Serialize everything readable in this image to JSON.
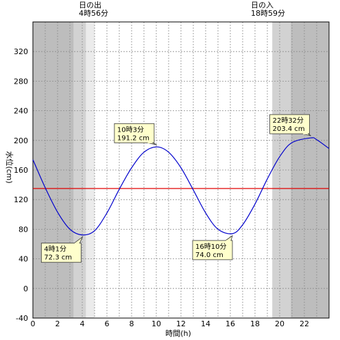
{
  "sun": {
    "sunrise_label": "日の出",
    "sunrise_time": "4時56分",
    "sunset_label": "日の入",
    "sunset_time": "18時59分"
  },
  "chart_data": {
    "type": "line",
    "xlabel": "時間(h)",
    "ylabel": "水位(cm)",
    "xlim": [
      0,
      24
    ],
    "ylim": [
      -40,
      360
    ],
    "xticks": [
      0,
      2,
      4,
      6,
      8,
      10,
      12,
      14,
      16,
      18,
      20,
      22
    ],
    "yticks": [
      -40,
      0,
      40,
      80,
      120,
      160,
      200,
      240,
      280,
      320
    ],
    "grid": true,
    "reference_line": {
      "value": 135,
      "color": "#e00000"
    },
    "series": [
      {
        "color": "#0000cc",
        "x": [
          0,
          1,
          2,
          3,
          4.017,
          5,
          6,
          7,
          8,
          9,
          10.05,
          11,
          12,
          13,
          14,
          15,
          16.167,
          17,
          18,
          19,
          20,
          21,
          22.533,
          23,
          24
        ],
        "y": [
          174,
          136,
          103,
          80,
          72.3,
          78,
          102,
          134,
          163,
          184,
          191.2,
          184,
          163,
          133,
          102,
          80,
          74.0,
          86,
          114,
          148,
          178,
          197,
          203.4,
          201,
          189
        ]
      }
    ],
    "annotations": [
      {
        "time": "4時1分",
        "value": "72.3 cm",
        "x": 4.017,
        "y": 72.3
      },
      {
        "time": "10時3分",
        "value": "191.2 cm",
        "x": 10.05,
        "y": 191.2
      },
      {
        "time": "16時10分",
        "value": "74.0 cm",
        "x": 16.167,
        "y": 74.0
      },
      {
        "time": "22時32分",
        "value": "203.4 cm",
        "x": 22.533,
        "y": 203.4
      }
    ],
    "shading": {
      "night_color": "#bdbdbd",
      "twilight_color": "#d2d2d2",
      "dawn_color": "#ebebeb",
      "day_color": "#ffffff",
      "bands": [
        {
          "from": 0,
          "to": 3.3,
          "kind": "night"
        },
        {
          "from": 3.3,
          "to": 4.3,
          "kind": "twilight"
        },
        {
          "from": 4.3,
          "to": 5.0,
          "kind": "dawn"
        },
        {
          "from": 5.0,
          "to": 19.4,
          "kind": "day"
        },
        {
          "from": 19.4,
          "to": 20.9,
          "kind": "twilight"
        },
        {
          "from": 20.9,
          "to": 24,
          "kind": "night"
        }
      ]
    }
  }
}
